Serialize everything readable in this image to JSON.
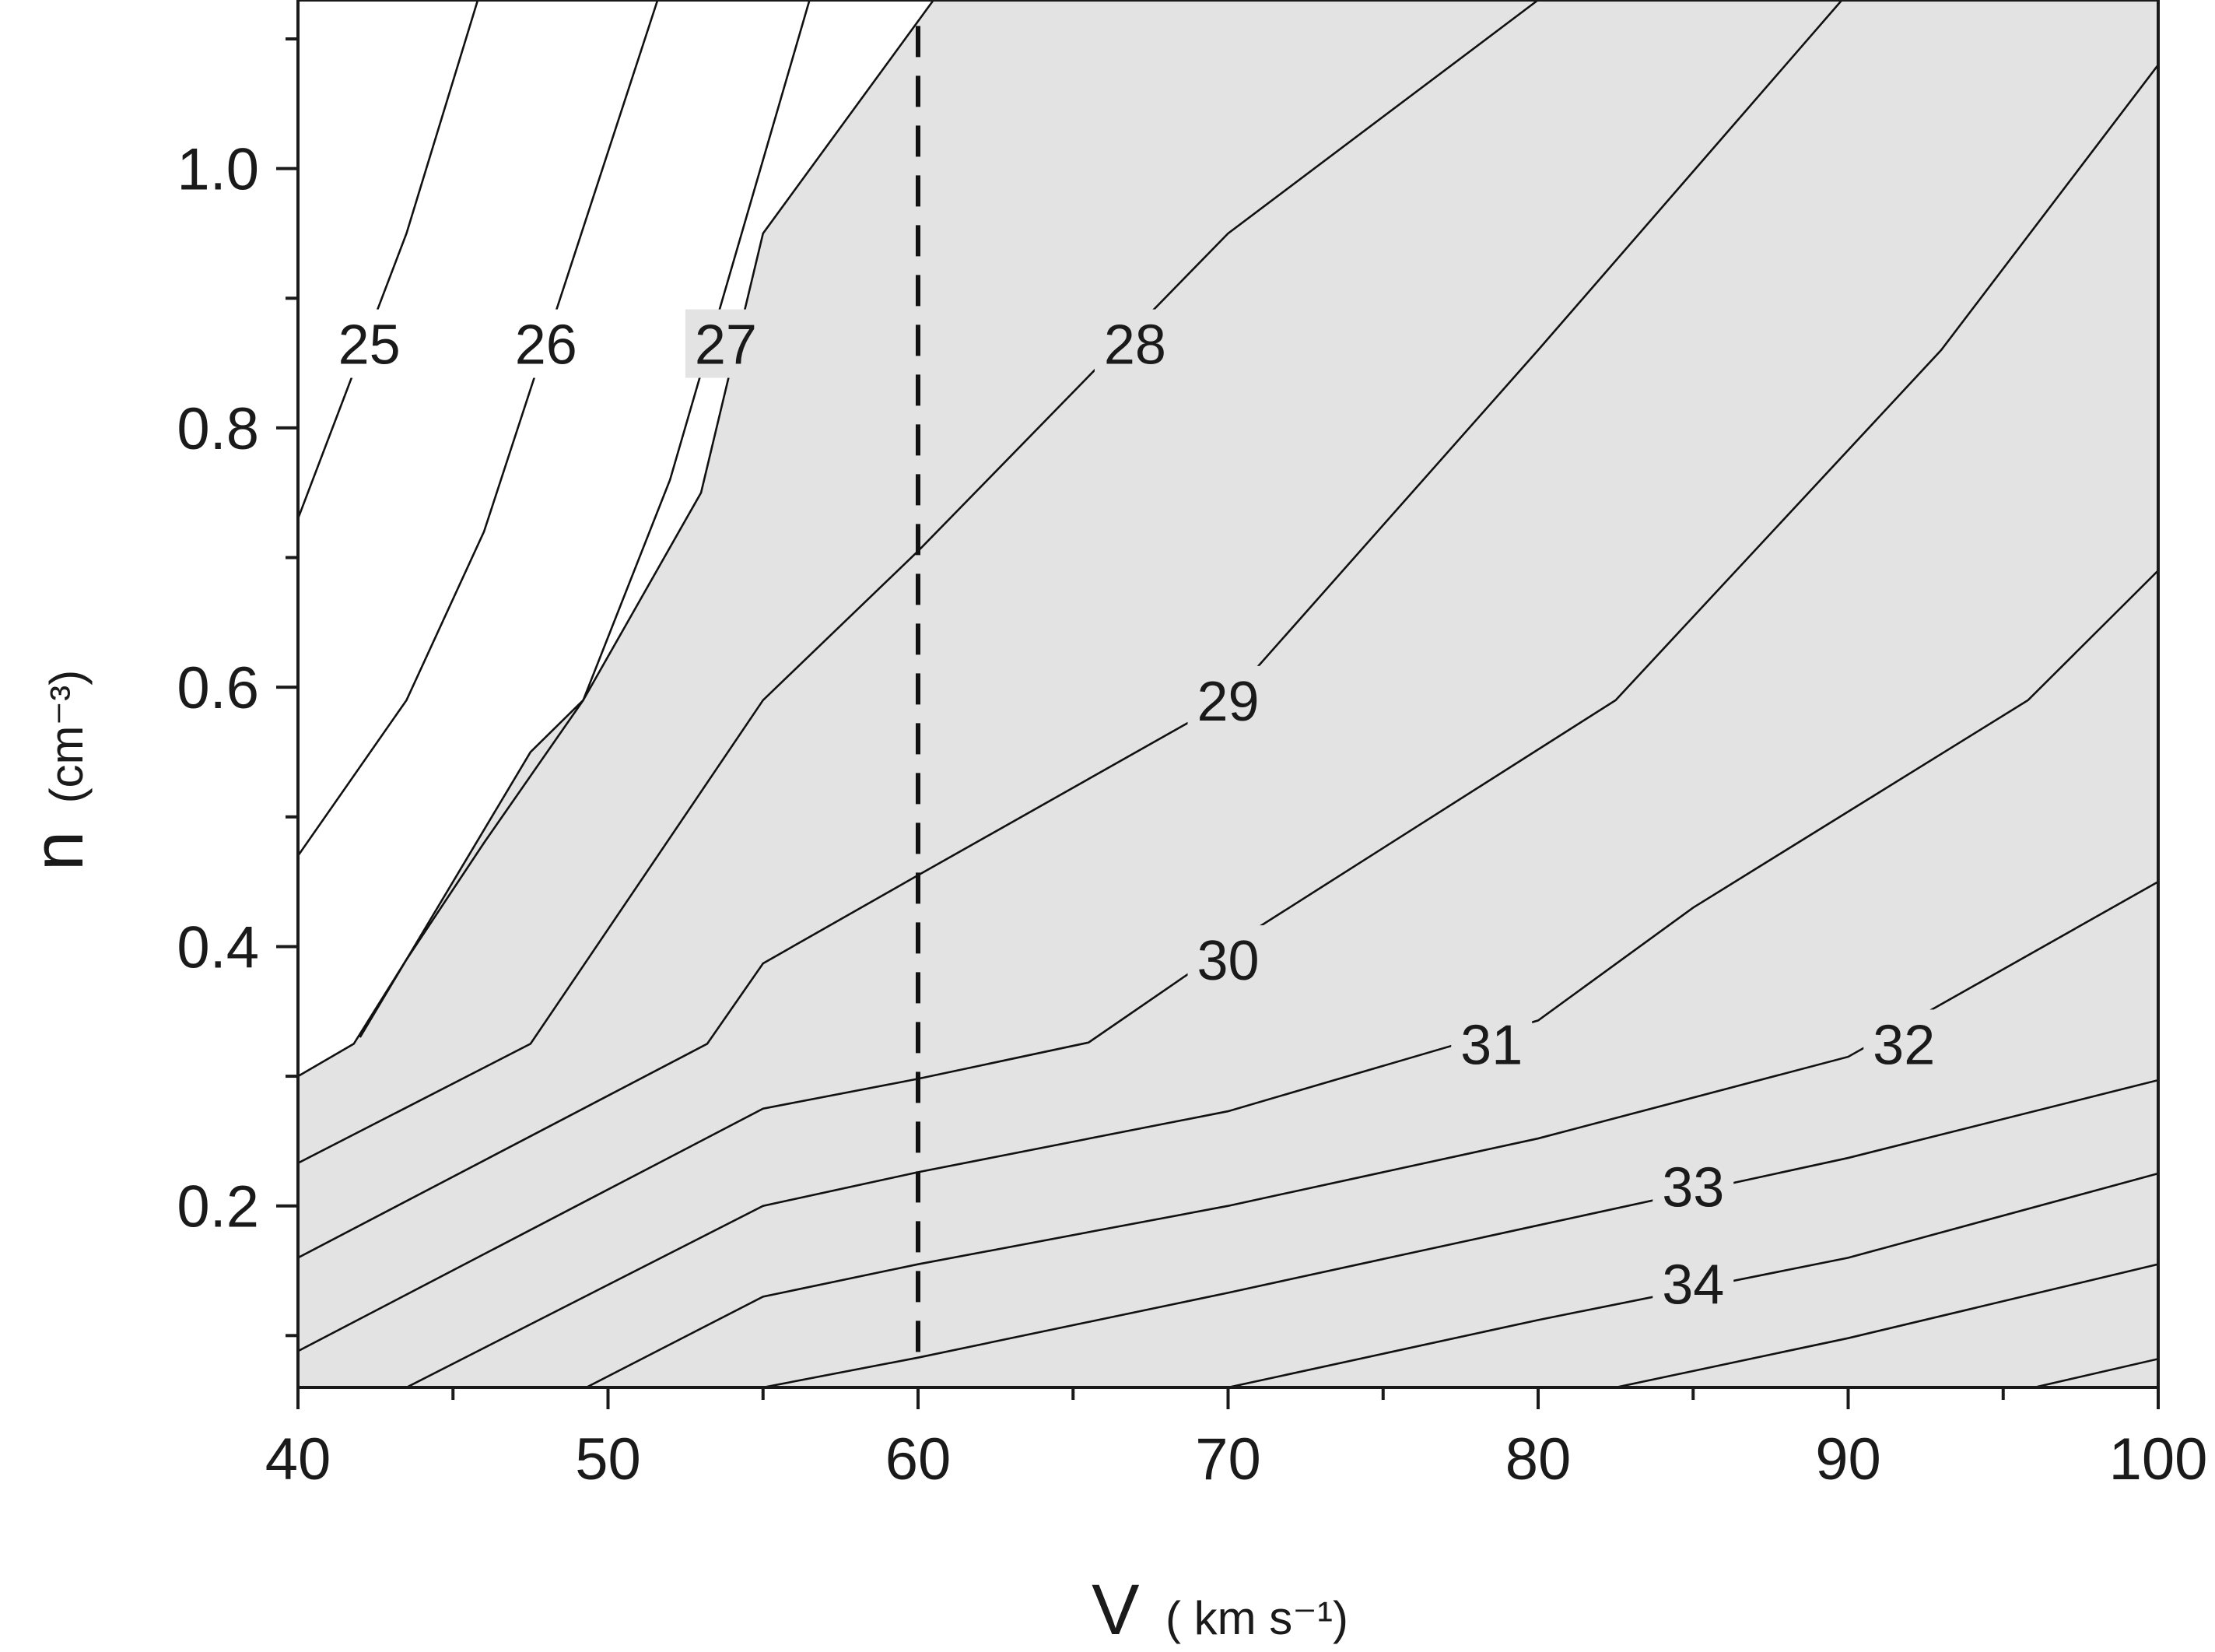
{
  "chart_data": {
    "type": "contour",
    "xlabel": "V",
    "xlabel_unit": "( km s⁻¹)",
    "ylabel": "n",
    "ylabel_unit": "(cm⁻³)",
    "xlim": [
      40,
      100
    ],
    "ylim": [
      0.06,
      1.13
    ],
    "x_ticks": [
      "40",
      "50",
      "60",
      "70",
      "80",
      "90",
      "100"
    ],
    "y_ticks": [
      "0.2",
      "0.4",
      "0.6",
      "0.8",
      "1.0"
    ],
    "y_tick_values": [
      0.2,
      0.4,
      0.6,
      0.8,
      1.0
    ],
    "grid": false,
    "shaded_region_color": "#e3e3e3",
    "shaded_boundary_level": "27",
    "vertical_dashed_line_x": 60,
    "contours": [
      {
        "level": "25",
        "points": [
          [
            40,
            0.73
          ],
          [
            43.5,
            0.95
          ],
          [
            45.8,
            1.13
          ]
        ],
        "label_at": [
          42.3,
          0.865
        ]
      },
      {
        "level": "25",
        "points": [
          [
            40,
            0.47
          ],
          [
            43.5,
            0.59
          ],
          [
            46,
            0.72
          ],
          [
            51.6,
            1.13
          ]
        ]
      },
      {
        "level": "26",
        "points": [
          [
            42,
            0.33
          ],
          [
            43.5,
            0.39
          ],
          [
            46,
            0.48
          ],
          [
            49.2,
            0.59
          ],
          [
            52,
            0.76
          ],
          [
            56.5,
            1.13
          ]
        ],
        "label_at": [
          48,
          0.865
        ]
      },
      {
        "level": "27",
        "points": [
          [
            40,
            0.3
          ],
          [
            41.8,
            0.325
          ],
          [
            43.5,
            0.39
          ],
          [
            47.5,
            0.55
          ],
          [
            49.2,
            0.59
          ],
          [
            53,
            0.75
          ],
          [
            55,
            0.95
          ],
          [
            60.5,
            1.13
          ]
        ],
        "label_at": [
          53.8,
          0.865
        ]
      },
      {
        "level": "28",
        "points": [
          [
            40,
            0.233
          ],
          [
            47.5,
            0.325
          ],
          [
            55,
            0.59
          ],
          [
            60,
            0.705
          ],
          [
            70,
            0.95
          ],
          [
            80,
            1.13
          ]
        ],
        "label_at": [
          67,
          0.865
        ]
      },
      {
        "level": "29",
        "points": [
          [
            40,
            0.16
          ],
          [
            53.2,
            0.325
          ],
          [
            55,
            0.387
          ],
          [
            60,
            0.455
          ],
          [
            70,
            0.59
          ],
          [
            80,
            0.86
          ],
          [
            89.8,
            1.13
          ]
        ],
        "label_at": [
          70,
          0.59
        ]
      },
      {
        "level": "30",
        "points": [
          [
            40,
            0.088
          ],
          [
            55,
            0.275
          ],
          [
            60,
            0.298
          ],
          [
            65.5,
            0.326
          ],
          [
            70,
            0.4
          ],
          [
            82.5,
            0.59
          ],
          [
            93,
            0.86
          ],
          [
            100,
            1.08
          ]
        ],
        "label_at": [
          70,
          0.39
        ]
      },
      {
        "level": "31",
        "points": [
          [
            43.5,
            0.06
          ],
          [
            55,
            0.2
          ],
          [
            60,
            0.226
          ],
          [
            70,
            0.273
          ],
          [
            80,
            0.343
          ],
          [
            85,
            0.43
          ],
          [
            95.8,
            0.59
          ],
          [
            100,
            0.69
          ]
        ],
        "label_at": [
          78.5,
          0.325
        ]
      },
      {
        "level": "32",
        "points": [
          [
            49.3,
            0.06
          ],
          [
            55,
            0.13
          ],
          [
            60,
            0.155
          ],
          [
            70,
            0.2
          ],
          [
            80,
            0.252
          ],
          [
            90,
            0.315
          ],
          [
            100,
            0.45
          ]
        ],
        "label_at": [
          91.8,
          0.325
        ]
      },
      {
        "level": "33",
        "points": [
          [
            55,
            0.06
          ],
          [
            60,
            0.083
          ],
          [
            70,
            0.133
          ],
          [
            80,
            0.185
          ],
          [
            90,
            0.237
          ],
          [
            100,
            0.297
          ]
        ],
        "label_at": [
          85,
          0.215
        ]
      },
      {
        "level": "34",
        "points": [
          [
            70,
            0.06
          ],
          [
            80,
            0.112
          ],
          [
            90,
            0.16
          ],
          [
            100,
            0.225
          ]
        ],
        "label_at": [
          85,
          0.14
        ]
      },
      {
        "level": "",
        "points": [
          [
            82.5,
            0.06
          ],
          [
            90,
            0.098
          ],
          [
            100,
            0.155
          ]
        ]
      },
      {
        "level": "",
        "points": [
          [
            96,
            0.06
          ],
          [
            100,
            0.082
          ]
        ]
      }
    ]
  }
}
